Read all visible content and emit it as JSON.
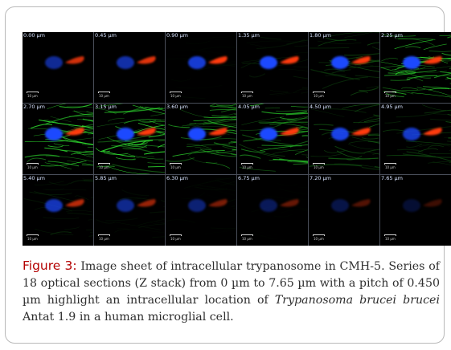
{
  "figure": {
    "tiles": [
      {
        "z_label": "0.00 µm",
        "scale_label": "10 µm",
        "green": 0.0,
        "blue": 0.58,
        "red": 0.82
      },
      {
        "z_label": "0.45 µm",
        "scale_label": "10 µm",
        "green": 0.0,
        "blue": 0.65,
        "red": 0.88
      },
      {
        "z_label": "0.90 µm",
        "scale_label": "10 µm",
        "green": 0.04,
        "blue": 0.82,
        "red": 1.0
      },
      {
        "z_label": "1.35 µm",
        "scale_label": "10 µm",
        "green": 0.12,
        "blue": 1.0,
        "red": 1.0
      },
      {
        "z_label": "1.80 µm",
        "scale_label": "10 µm",
        "green": 0.35,
        "blue": 1.0,
        "red": 1.0
      },
      {
        "z_label": "2.25 µm",
        "scale_label": "10 µm",
        "green": 0.95,
        "blue": 1.0,
        "red": 1.0
      },
      {
        "z_label": "2.70 µm",
        "scale_label": "10 µm",
        "green": 1.0,
        "blue": 1.0,
        "red": 1.0
      },
      {
        "z_label": "3.15 µm",
        "scale_label": "10 µm",
        "green": 1.0,
        "blue": 1.0,
        "red": 1.0
      },
      {
        "z_label": "3.60 µm",
        "scale_label": "10 µm",
        "green": 0.8,
        "blue": 1.0,
        "red": 1.0
      },
      {
        "z_label": "4.05 µm",
        "scale_label": "10 µm",
        "green": 0.78,
        "blue": 1.0,
        "red": 1.0
      },
      {
        "z_label": "4.50 µm",
        "scale_label": "10 µm",
        "green": 0.42,
        "blue": 0.9,
        "red": 1.0
      },
      {
        "z_label": "4.95 µm",
        "scale_label": "10 µm",
        "green": 0.34,
        "blue": 0.78,
        "red": 1.0
      },
      {
        "z_label": "5.40 µm",
        "scale_label": "10 µm",
        "green": 0.18,
        "blue": 0.72,
        "red": 0.72
      },
      {
        "z_label": "5.85 µm",
        "scale_label": "10 µm",
        "green": 0.08,
        "blue": 0.55,
        "red": 0.6
      },
      {
        "z_label": "6.30 µm",
        "scale_label": "10 µm",
        "green": 0.04,
        "blue": 0.45,
        "red": 0.48
      },
      {
        "z_label": "6.75 µm",
        "scale_label": "10 µm",
        "green": 0.02,
        "blue": 0.35,
        "red": 0.4
      },
      {
        "z_label": "7.20 µm",
        "scale_label": "10 µm",
        "green": 0.0,
        "blue": 0.28,
        "red": 0.32
      },
      {
        "z_label": "7.65 µm",
        "scale_label": "10 µm",
        "green": 0.0,
        "blue": 0.2,
        "red": 0.24
      }
    ],
    "caption": {
      "label": "Figure 3:",
      "text_before_italic": " Image sheet of intracellular trypanosome in CMH-5. Series of 18 optical sections (Z stack) from 0 µm to 7.65 µm with a pitch of 0.450 µm highlight an intracellular location of ",
      "italic": "Trypanosoma brucei brucei",
      "text_after_italic": " Antat 1.9 in a human microglial cell."
    }
  },
  "colors": {
    "caption_label": "#b30000",
    "caption_text": "#2f2f2f",
    "grid_lines": "#4a4f5a",
    "nucleus": "#1f48ff",
    "parasite": "#ff3a10",
    "cytoskeleton": "#2edb2f"
  }
}
